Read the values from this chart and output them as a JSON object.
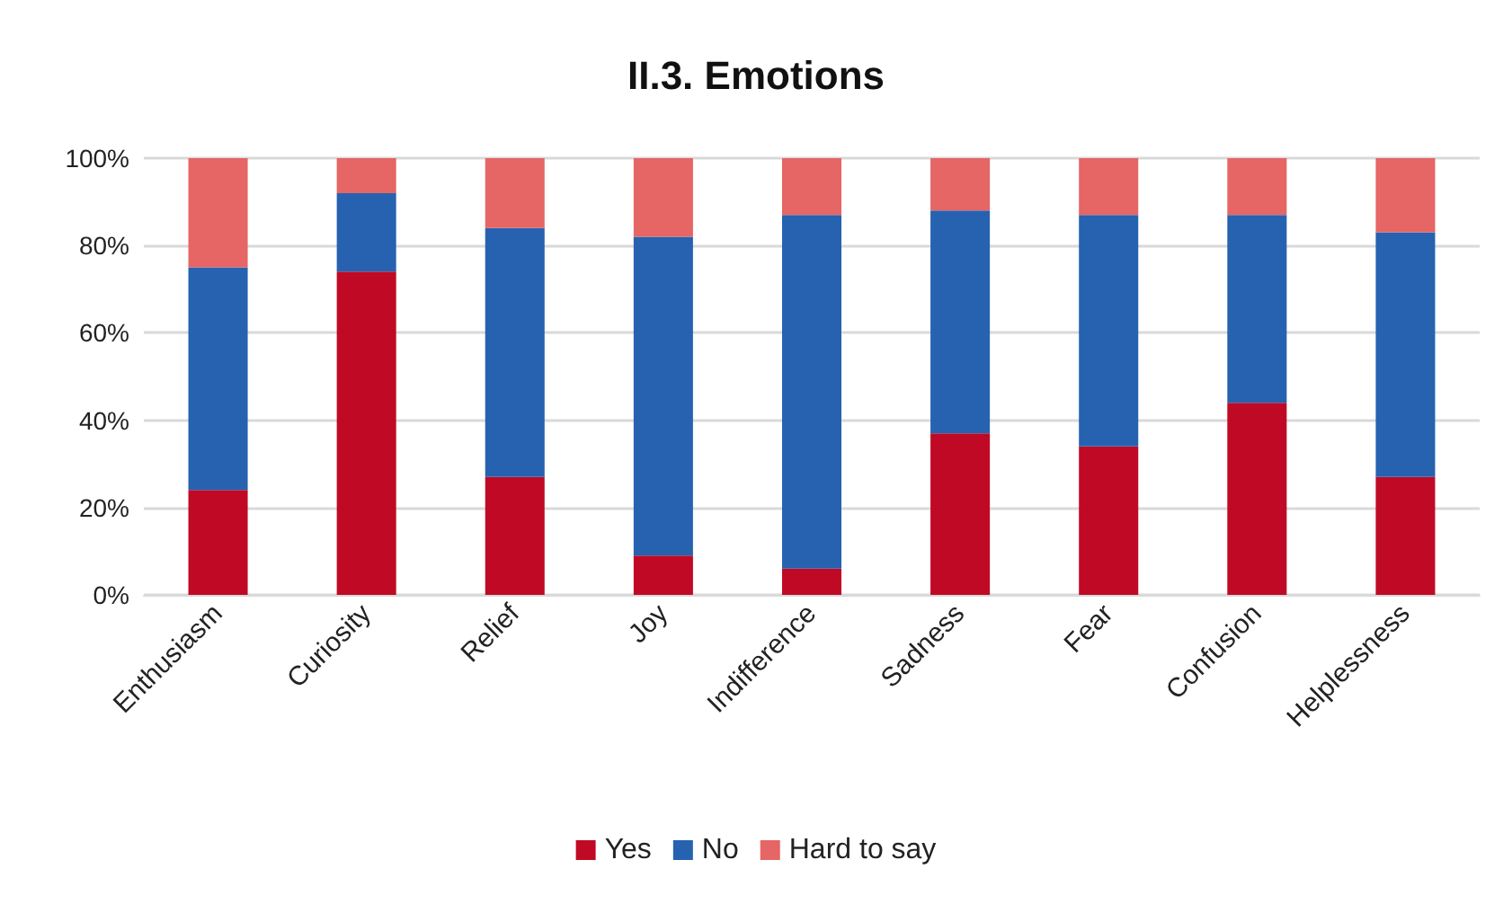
{
  "chart_data": {
    "type": "bar",
    "title": "II.3. Emotions",
    "stacked": true,
    "categories": [
      "Enthusiasm",
      "Curiosity",
      "Relief",
      "Joy",
      "Indifference",
      "Sadness",
      "Fear",
      "Confusion",
      "Helplessness"
    ],
    "series": [
      {
        "name": "Yes",
        "color": "#c00a25",
        "values": [
          24,
          74,
          27,
          9,
          6,
          37,
          34,
          44,
          27
        ]
      },
      {
        "name": "No",
        "color": "#2662b0",
        "values": [
          51,
          18,
          57,
          73,
          81,
          51,
          53,
          43,
          56
        ]
      },
      {
        "name": "Hard to say",
        "color": "#e66565",
        "values": [
          25,
          8,
          16,
          18,
          13,
          12,
          13,
          13,
          17
        ]
      }
    ],
    "ylim": [
      0,
      100
    ],
    "yticks": [
      {
        "value": 0,
        "label": "0%"
      },
      {
        "value": 20,
        "label": "20%"
      },
      {
        "value": 40,
        "label": "40%"
      },
      {
        "value": 60,
        "label": "60%"
      },
      {
        "value": 80,
        "label": "80%"
      },
      {
        "value": 100,
        "label": "100%"
      }
    ],
    "grid": "y",
    "legend": "bottom"
  }
}
